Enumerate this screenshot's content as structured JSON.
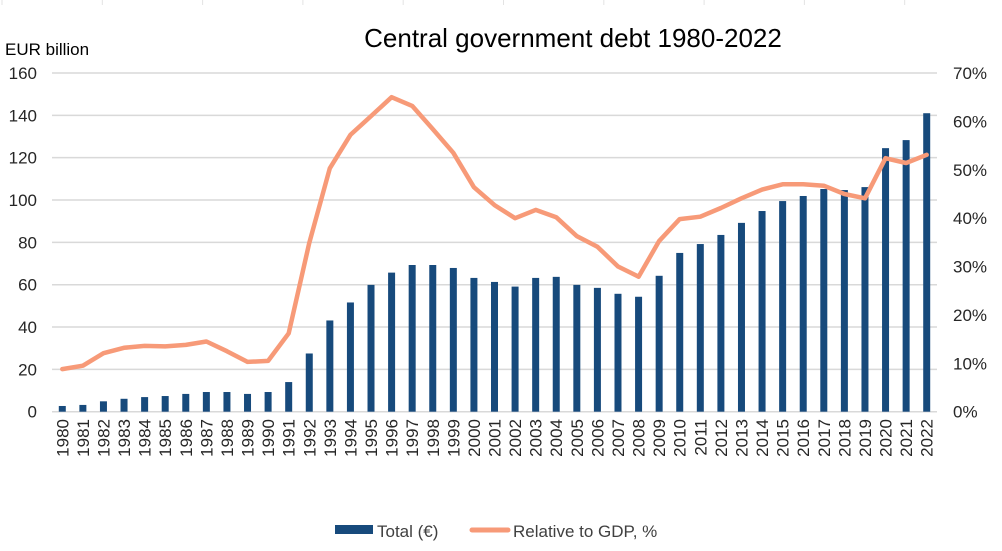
{
  "chart_data": {
    "type": "bar+line",
    "title": "Central government debt 1980-2022",
    "ylabel": "EUR billion",
    "y2label": "",
    "xlabel": "",
    "ylim": [
      0,
      160
    ],
    "y2lim": [
      0,
      70
    ],
    "yticks": [
      "0",
      "20",
      "40",
      "60",
      "80",
      "100",
      "120",
      "140",
      "160"
    ],
    "y2ticks": [
      "0%",
      "10%",
      "20%",
      "30%",
      "40%",
      "50%",
      "60%",
      "70%"
    ],
    "grid": true,
    "legend_position": "bottom",
    "categories": [
      "1980",
      "1981",
      "1982",
      "1983",
      "1984",
      "1985",
      "1986",
      "1987",
      "1988",
      "1989",
      "1990",
      "1991",
      "1992",
      "1993",
      "1994",
      "1995",
      "1996",
      "1997",
      "1998",
      "1999",
      "2000",
      "2001",
      "2002",
      "2003",
      "2004",
      "2005",
      "2006",
      "2007",
      "2008",
      "2009",
      "2010",
      "2011",
      "2012",
      "2013",
      "2014",
      "2015",
      "2016",
      "2017",
      "2018",
      "2019",
      "2020",
      "2021",
      "2022"
    ],
    "series": [
      {
        "name": "Total (€)",
        "type": "bar",
        "axis": "left",
        "color": "#174A7C",
        "values": [
          2.7,
          3.2,
          4.9,
          6.1,
          6.9,
          7.4,
          8.4,
          9.3,
          9.3,
          8.4,
          9.3,
          14.0,
          27.5,
          43.1,
          51.6,
          59.9,
          65.7,
          69.3,
          69.3,
          67.9,
          63.2,
          61.3,
          59.1,
          63.2,
          63.7,
          59.9,
          58.5,
          55.7,
          54.3,
          64.2,
          75.0,
          79.2,
          83.5,
          89.2,
          94.8,
          99.5,
          101.9,
          105.2,
          104.7,
          106.1,
          124.5,
          128.3,
          141.0
        ]
      },
      {
        "name": "Relative to GDP, %",
        "type": "line",
        "axis": "right",
        "color": "#F79A78",
        "values": [
          8.8,
          9.5,
          12.1,
          13.2,
          13.6,
          13.5,
          13.8,
          14.5,
          12.5,
          10.3,
          10.5,
          16.2,
          34.9,
          50.3,
          57.2,
          61.1,
          65.0,
          63.2,
          58.4,
          53.5,
          46.4,
          42.7,
          40.0,
          41.7,
          40.2,
          36.3,
          34.1,
          30.0,
          27.9,
          35.3,
          39.8,
          40.3,
          42.1,
          44.1,
          45.9,
          47.0,
          47.0,
          46.7,
          45.0,
          44.1,
          52.4,
          51.4,
          53.1
        ]
      }
    ]
  }
}
